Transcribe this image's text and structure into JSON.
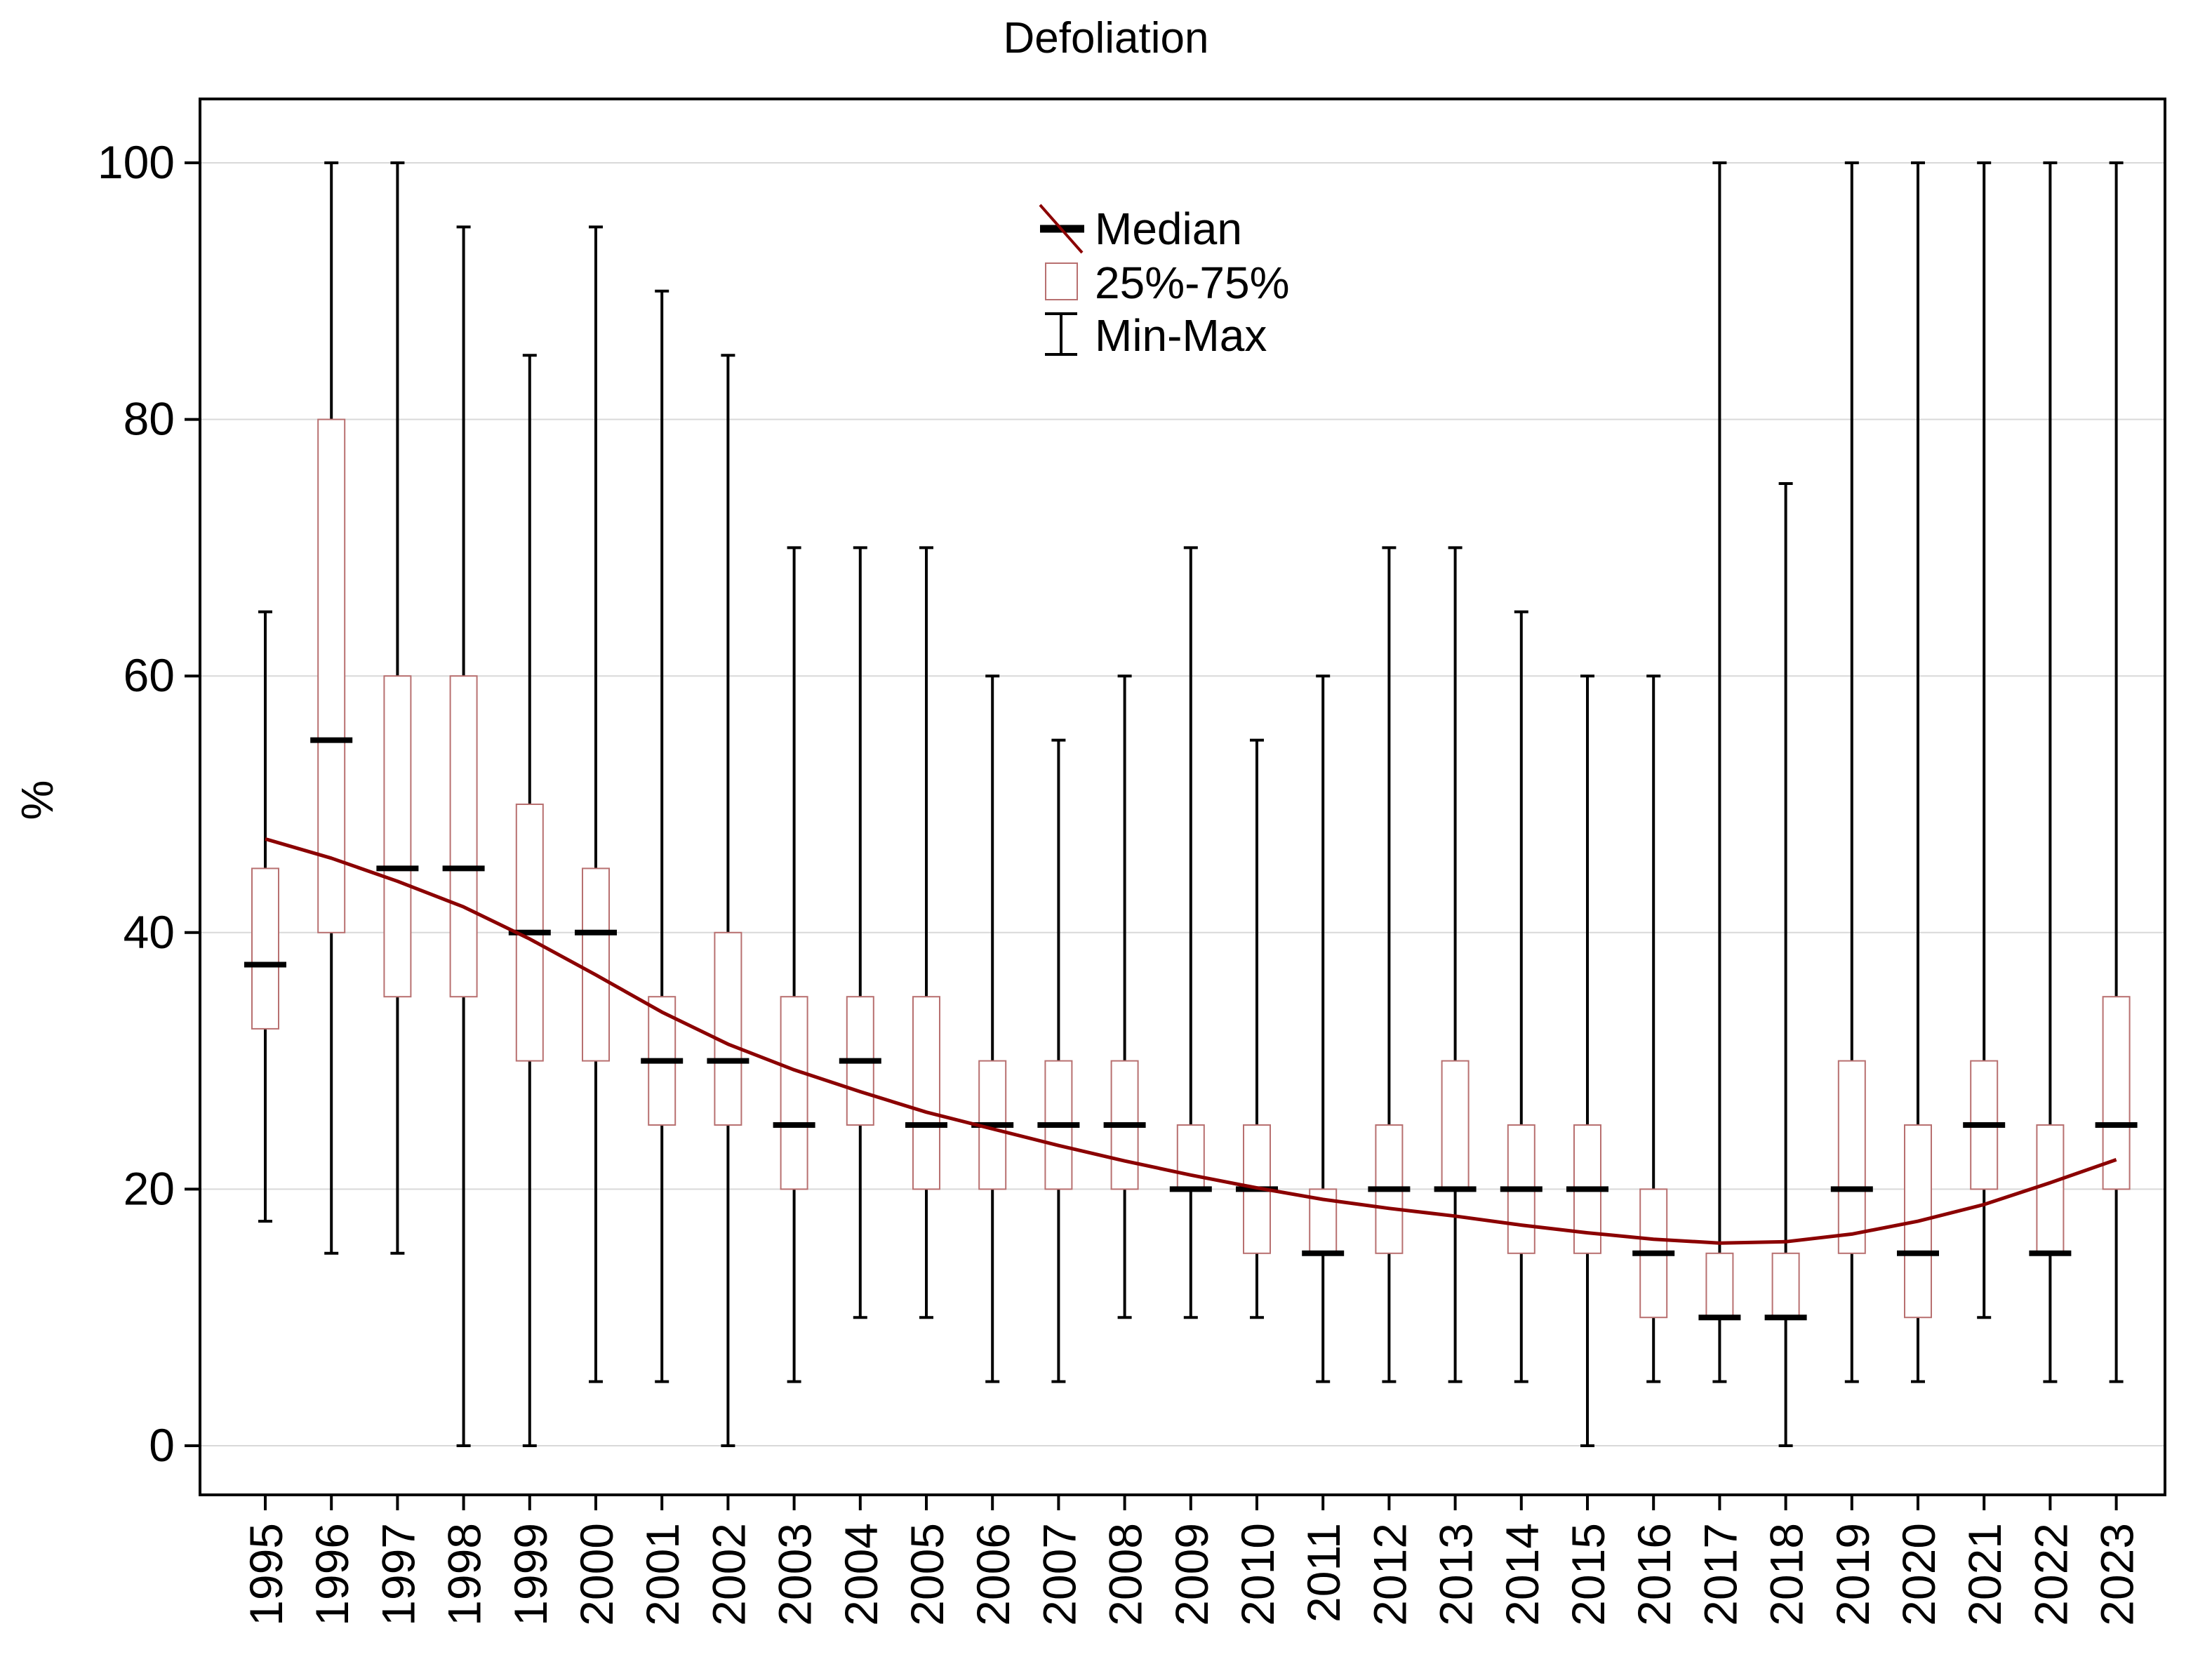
{
  "chart_data": {
    "type": "boxplot",
    "title": "Defoliation",
    "xlabel": "",
    "ylabel": "%",
    "ylim": [
      -5,
      105
    ],
    "yticks": [
      0,
      20,
      40,
      60,
      80,
      100
    ],
    "grid": true,
    "legend_position": "top-center",
    "legend": {
      "median": "Median",
      "box": "25%-75%",
      "whisker": "Min-Max"
    },
    "colors": {
      "box_edge": "#b87070",
      "trend": "#8b0000",
      "median": "#000000",
      "whisker": "#000000",
      "grid": "#d9d9d9"
    },
    "categories": [
      "1995",
      "1996",
      "1997",
      "1998",
      "1999",
      "2000",
      "2001",
      "2002",
      "2003",
      "2004",
      "2005",
      "2006",
      "2007",
      "2008",
      "2009",
      "2010",
      "2011",
      "2012",
      "2013",
      "2014",
      "2015",
      "2016",
      "2017",
      "2018",
      "2019",
      "2020",
      "2021",
      "2022",
      "2023"
    ],
    "median": [
      37.5,
      55,
      45,
      45,
      40,
      40,
      30,
      30,
      25,
      30,
      25,
      25,
      25,
      25,
      20,
      20,
      15,
      20,
      20,
      20,
      20,
      15,
      10,
      10,
      20,
      15,
      25,
      15,
      25
    ],
    "q1": [
      32.5,
      40,
      35,
      35,
      30,
      30,
      25,
      25,
      20,
      25,
      20,
      20,
      20,
      20,
      20,
      15,
      15,
      15,
      20,
      15,
      15,
      10,
      10,
      10,
      15,
      10,
      20,
      15,
      20
    ],
    "q3": [
      45,
      80,
      60,
      60,
      50,
      45,
      35,
      40,
      35,
      35,
      35,
      30,
      30,
      30,
      25,
      25,
      20,
      25,
      30,
      25,
      25,
      20,
      15,
      15,
      30,
      25,
      30,
      25,
      35
    ],
    "min": [
      17.5,
      15,
      15,
      0,
      0,
      5,
      5,
      0,
      5,
      10,
      10,
      5,
      5,
      10,
      10,
      10,
      5,
      5,
      5,
      5,
      0,
      5,
      5,
      0,
      5,
      5,
      10,
      5,
      5
    ],
    "max": [
      65,
      100,
      100,
      95,
      85,
      95,
      90,
      85,
      70,
      70,
      70,
      60,
      55,
      60,
      70,
      55,
      60,
      70,
      70,
      65,
      60,
      60,
      100,
      75,
      100,
      100,
      100,
      100,
      100
    ],
    "trend": [
      47.3,
      45.8,
      44.0,
      42.0,
      39.5,
      36.7,
      33.8,
      31.3,
      29.3,
      27.6,
      26.0,
      24.7,
      23.4,
      22.2,
      21.1,
      20.1,
      19.2,
      18.5,
      17.9,
      17.2,
      16.6,
      16.1,
      15.8,
      15.9,
      16.5,
      17.5,
      18.8,
      20.5,
      22.3
    ]
  }
}
